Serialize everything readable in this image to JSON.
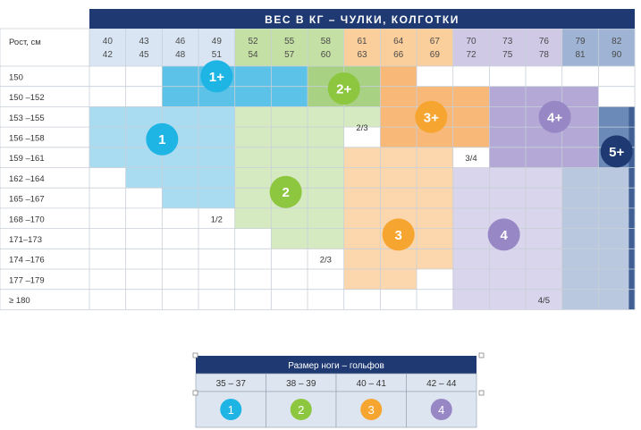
{
  "title": "ВЕС В КГ – ЧУЛКИ, КОЛГОТКИ",
  "height_header": "Рост, см",
  "weight_ranges": [
    [
      "40",
      "42"
    ],
    [
      "43",
      "45"
    ],
    [
      "46",
      "48"
    ],
    [
      "49",
      "51"
    ],
    [
      "52",
      "54"
    ],
    [
      "55",
      "57"
    ],
    [
      "58",
      "60"
    ],
    [
      "61",
      "63"
    ],
    [
      "64",
      "66"
    ],
    [
      "67",
      "69"
    ],
    [
      "70",
      "72"
    ],
    [
      "73",
      "75"
    ],
    [
      "76",
      "78"
    ],
    [
      "79",
      "81"
    ],
    [
      "82",
      "90"
    ]
  ],
  "height_ranges": [
    "150",
    "150 –152",
    "153 –155",
    "156 –158",
    "159 –161",
    "162 –164",
    "165 –167",
    "168 –170",
    "171–173",
    "174 –176",
    "177 –179",
    "≥ 180"
  ],
  "badges": {
    "s1p": "1+",
    "s1": "1",
    "s2p": "2+",
    "s2": "2",
    "s3p": "3+",
    "s3": "3",
    "s4p": "4+",
    "s4": "4",
    "s5p": "5+"
  },
  "between_labels": {
    "b12": "1/2",
    "b23a": "2/3",
    "b23b": "2/3",
    "b34": "3/4",
    "b45": "4/5"
  },
  "colors": {
    "navy": "#1f3a73",
    "s1": "#a9dcf0",
    "s1p": "#5dc2e8",
    "s1badge": "#1eb4e3",
    "s2": "#d6eac2",
    "s2p": "#a8d184",
    "s2badge": "#8dc63f",
    "s3": "#fcd7ad",
    "s3p": "#f8b878",
    "s3badge": "#f6a531",
    "s4": "#d9d5ec",
    "s4p": "#b3a8d6",
    "s4badge": "#9887c5",
    "s5": "#b9c8de",
    "s5p": "#6b8ab8",
    "s5badge": "#1f3a73",
    "hcol": "#d9e5f3"
  },
  "shoe": {
    "title": "Размер ноги – гольфов",
    "sizes": [
      "35 – 37",
      "38 – 39",
      "40 – 41",
      "42 – 44"
    ],
    "badges": [
      "1",
      "2",
      "3",
      "4"
    ]
  }
}
